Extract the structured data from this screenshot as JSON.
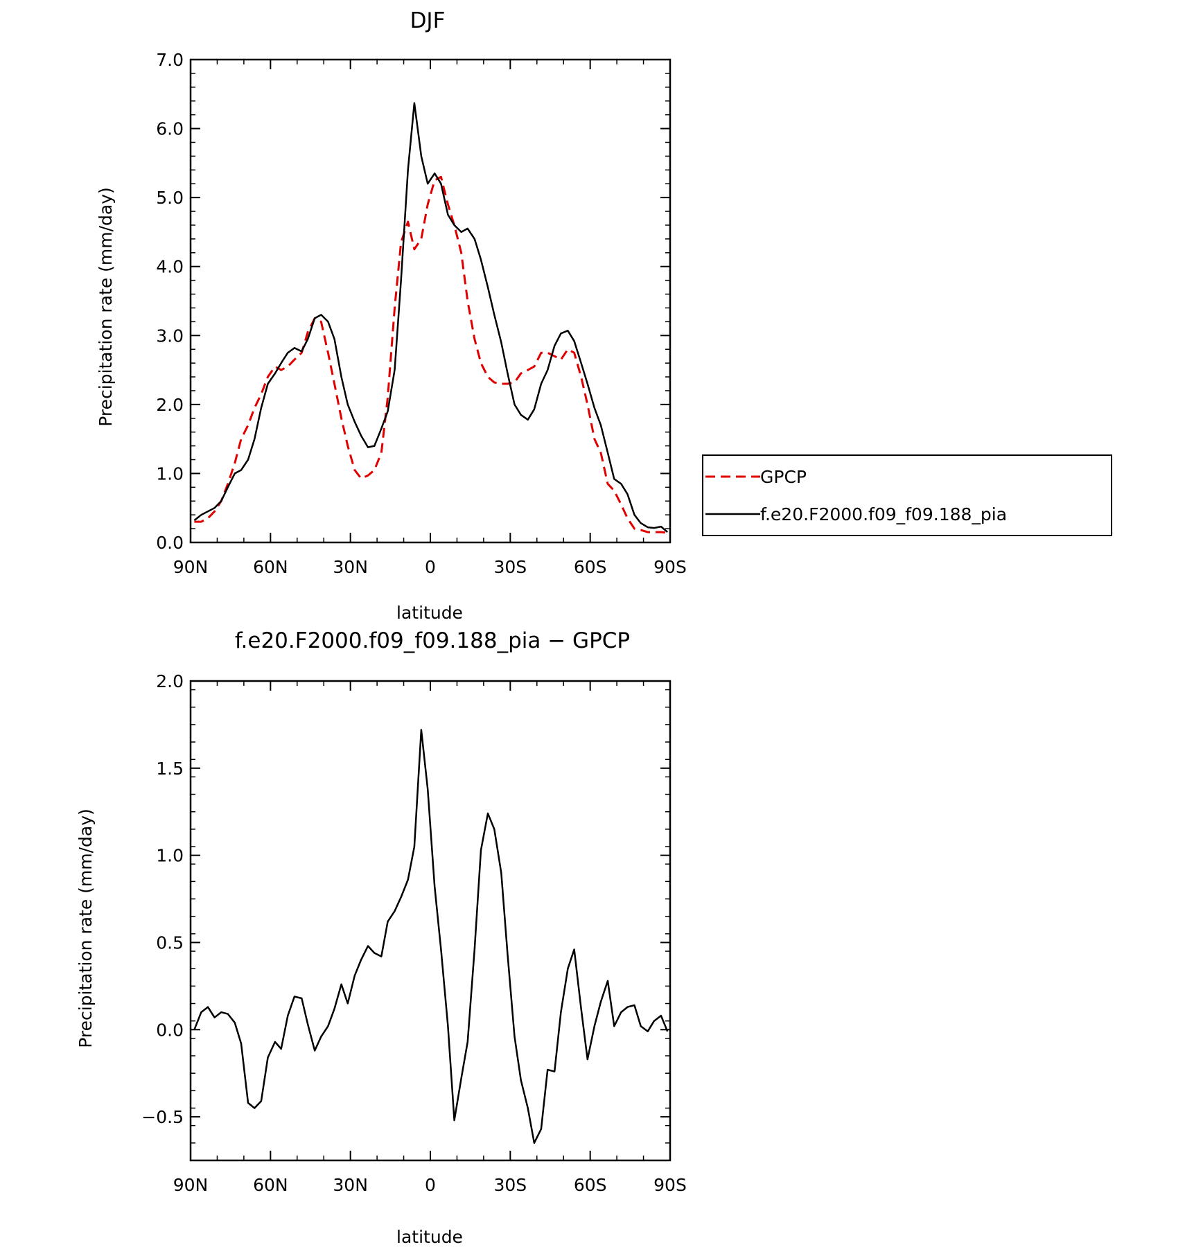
{
  "chart_data": [
    {
      "type": "line",
      "title": "DJF",
      "xlabel": "latitude",
      "ylabel": "Precipitation rate (mm/day)",
      "xlim": [
        90,
        -90
      ],
      "ylim": [
        0,
        7
      ],
      "xticks": [
        90,
        60,
        30,
        0,
        -30,
        -60,
        -90
      ],
      "xtick_labels": [
        "90N",
        "60N",
        "30N",
        "0",
        "30S",
        "60S",
        "90S"
      ],
      "yticks": [
        0,
        1,
        2,
        3,
        4,
        5,
        6,
        7
      ],
      "ytick_labels": [
        "0.0",
        "1.0",
        "2.0",
        "3.0",
        "4.0",
        "5.0",
        "6.0",
        "7.0"
      ],
      "legend_position": "right, outside plot",
      "series": [
        {
          "name": "GPCP",
          "color": "#e00000",
          "dash": "dashed",
          "x": [
            88.6,
            86,
            83.5,
            81,
            78.5,
            76,
            73.4,
            71,
            68.4,
            66,
            63.5,
            61,
            58.3,
            56,
            53.5,
            51,
            48.3,
            46,
            43.4,
            41,
            38.4,
            36,
            33.4,
            31,
            28.4,
            26,
            23.4,
            21,
            18.4,
            16,
            13.4,
            11,
            8.4,
            6,
            3.4,
            1,
            -1.6,
            -4,
            -6.6,
            -9,
            -11.6,
            -14,
            -16.6,
            -19,
            -21.6,
            -24,
            -26.6,
            -29,
            -31.6,
            -34,
            -36.6,
            -39,
            -41.6,
            -44,
            -46.6,
            -49,
            -51.6,
            -54,
            -56.6,
            -59,
            -61.6,
            -64,
            -66.6,
            -69,
            -71.6,
            -74,
            -76.6,
            -79,
            -81.6,
            -84,
            -86.6,
            -89
          ],
          "y": [
            0.3,
            0.3,
            0.35,
            0.45,
            0.6,
            0.85,
            1.15,
            1.5,
            1.7,
            1.95,
            2.15,
            2.4,
            2.55,
            2.5,
            2.55,
            2.65,
            2.75,
            3.05,
            3.25,
            3.2,
            2.75,
            2.3,
            1.8,
            1.4,
            1.05,
            0.93,
            0.97,
            1.05,
            1.3,
            2.1,
            3.4,
            4.35,
            4.65,
            4.25,
            4.4,
            4.9,
            5.25,
            5.3,
            4.9,
            4.6,
            4.2,
            3.5,
            2.95,
            2.6,
            2.4,
            2.32,
            2.3,
            2.3,
            2.32,
            2.45,
            2.5,
            2.55,
            2.75,
            2.75,
            2.7,
            2.65,
            2.8,
            2.75,
            2.4,
            2.0,
            1.5,
            1.3,
            0.85,
            0.75,
            0.55,
            0.35,
            0.2,
            0.18,
            0.15,
            0.15,
            0.15,
            0.14
          ]
        },
        {
          "name": "f.e20.F2000.f09_f09.188_pia",
          "color": "#000000",
          "dash": "solid",
          "x": [
            88.6,
            86,
            83.5,
            81,
            78.5,
            76,
            73.4,
            71,
            68.4,
            66,
            63.5,
            61,
            58.3,
            56,
            53.5,
            51,
            48.3,
            46,
            43.4,
            41,
            38.4,
            36,
            33.4,
            31,
            28.4,
            26,
            23.4,
            21,
            18.4,
            16,
            13.4,
            11,
            8.4,
            6,
            3.4,
            1,
            -1.6,
            -4,
            -6.6,
            -9,
            -11.6,
            -14,
            -16.6,
            -19,
            -21.6,
            -24,
            -26.6,
            -29,
            -31.6,
            -34,
            -36.6,
            -39,
            -41.6,
            -44,
            -46.6,
            -49,
            -51.6,
            -54,
            -56.6,
            -59,
            -61.6,
            -64,
            -66.6,
            -69,
            -71.6,
            -74,
            -76.6,
            -79,
            -81.6,
            -84,
            -86.6,
            -89
          ],
          "y": [
            0.32,
            0.4,
            0.45,
            0.5,
            0.6,
            0.8,
            1.0,
            1.05,
            1.2,
            1.5,
            1.95,
            2.3,
            2.45,
            2.6,
            2.75,
            2.82,
            2.77,
            2.95,
            3.25,
            3.3,
            3.2,
            2.95,
            2.4,
            2.0,
            1.75,
            1.55,
            1.38,
            1.4,
            1.65,
            1.9,
            2.5,
            3.8,
            5.4,
            6.37,
            5.6,
            5.2,
            5.35,
            5.2,
            4.75,
            4.6,
            4.5,
            4.55,
            4.4,
            4.1,
            3.7,
            3.3,
            2.9,
            2.45,
            2.0,
            1.85,
            1.78,
            1.93,
            2.3,
            2.5,
            2.85,
            3.03,
            3.07,
            2.92,
            2.6,
            2.3,
            1.95,
            1.7,
            1.3,
            0.92,
            0.85,
            0.7,
            0.4,
            0.28,
            0.22,
            0.21,
            0.23,
            0.15
          ]
        }
      ]
    },
    {
      "type": "line",
      "title": "f.e20.F2000.f09_f09.188_pia − GPCP",
      "xlabel": "latitude",
      "ylabel": "Precipitation rate (mm/day)",
      "xlim": [
        90,
        -90
      ],
      "ylim": [
        -0.75,
        2.0
      ],
      "xticks": [
        90,
        60,
        30,
        0,
        -30,
        -60,
        -90
      ],
      "xtick_labels": [
        "90N",
        "60N",
        "30N",
        "0",
        "30S",
        "60S",
        "90S"
      ],
      "yticks": [
        -0.5,
        0,
        0.5,
        1.0,
        1.5,
        2.0
      ],
      "ytick_labels": [
        "−0.5",
        "0.0",
        "0.5",
        "1.0",
        "1.5",
        "2.0"
      ],
      "series": [
        {
          "color": "#000000",
          "dash": "solid",
          "x": [
            88.6,
            86,
            83.5,
            81,
            78.5,
            76,
            73.4,
            71,
            68.4,
            66,
            63.5,
            61,
            58.3,
            56,
            53.5,
            51,
            48.3,
            46,
            43.4,
            41,
            38.4,
            36,
            33.4,
            31,
            28.4,
            26,
            23.4,
            21,
            18.4,
            16,
            13.4,
            11,
            8.4,
            6,
            3.4,
            1,
            -1.6,
            -4,
            -6.6,
            -9,
            -11.6,
            -14,
            -16.6,
            -19,
            -21.6,
            -24,
            -26.6,
            -29,
            -31.6,
            -34,
            -36.6,
            -39,
            -41.6,
            -44,
            -46.6,
            -49,
            -51.6,
            -54,
            -56.6,
            -59,
            -61.6,
            -64,
            -66.6,
            -69,
            -71.6,
            -74,
            -76.6,
            -79,
            -81.6,
            -84,
            -86.6,
            -89
          ],
          "y": [
            0.0,
            0.1,
            0.13,
            0.07,
            0.1,
            0.09,
            0.04,
            -0.08,
            -0.42,
            -0.45,
            -0.41,
            -0.16,
            -0.07,
            -0.11,
            0.08,
            0.19,
            0.18,
            0.03,
            -0.12,
            -0.04,
            0.02,
            0.12,
            0.26,
            0.15,
            0.31,
            0.4,
            0.48,
            0.44,
            0.42,
            0.62,
            0.68,
            0.76,
            0.86,
            1.05,
            1.72,
            1.38,
            0.82,
            0.46,
            0.02,
            -0.52,
            -0.28,
            -0.07,
            0.46,
            1.03,
            1.24,
            1.15,
            0.9,
            0.43,
            -0.04,
            -0.29,
            -0.45,
            -0.65,
            -0.57,
            -0.23,
            -0.24,
            0.1,
            0.35,
            0.46,
            0.12,
            -0.17,
            0.02,
            0.16,
            0.28,
            0.02,
            0.1,
            0.13,
            0.14,
            0.02,
            -0.01,
            0.05,
            0.08,
            -0.01
          ]
        }
      ]
    }
  ]
}
